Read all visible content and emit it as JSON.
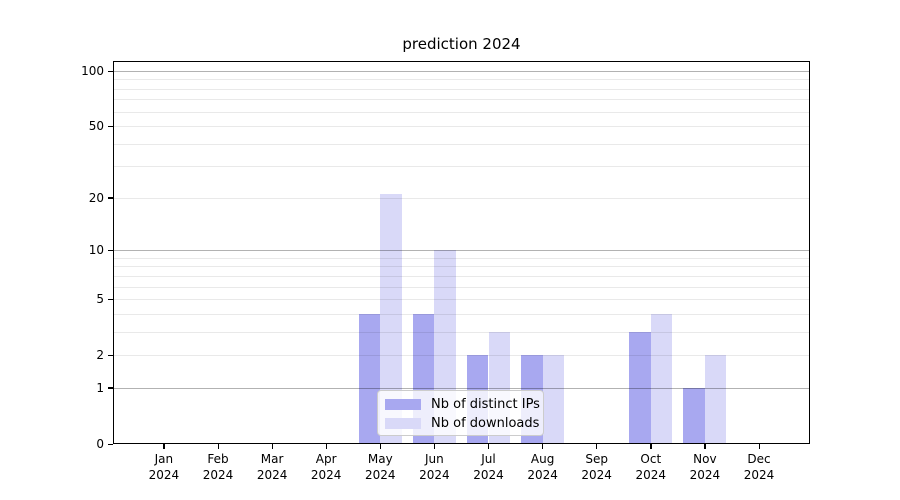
{
  "chart_data": {
    "type": "bar",
    "title": "prediction 2024",
    "categories": [
      {
        "month": "Jan",
        "year": "2024"
      },
      {
        "month": "Feb",
        "year": "2024"
      },
      {
        "month": "Mar",
        "year": "2024"
      },
      {
        "month": "Apr",
        "year": "2024"
      },
      {
        "month": "May",
        "year": "2024"
      },
      {
        "month": "Jun",
        "year": "2024"
      },
      {
        "month": "Jul",
        "year": "2024"
      },
      {
        "month": "Aug",
        "year": "2024"
      },
      {
        "month": "Sep",
        "year": "2024"
      },
      {
        "month": "Oct",
        "year": "2024"
      },
      {
        "month": "Nov",
        "year": "2024"
      },
      {
        "month": "Dec",
        "year": "2024"
      }
    ],
    "series": [
      {
        "name": "Nb of distinct IPs",
        "color": "#a8a8f0",
        "values": [
          0,
          0,
          0,
          0,
          4,
          4,
          2,
          2,
          0,
          3,
          1,
          0
        ]
      },
      {
        "name": "Nb of downloads",
        "color": "#d9d9f8",
        "values": [
          0,
          0,
          0,
          0,
          21,
          10,
          3,
          2,
          0,
          4,
          2,
          0
        ]
      }
    ],
    "y_axis": {
      "scale": "log1p",
      "tick_values": [
        100,
        50,
        20,
        10,
        5,
        2,
        1,
        0
      ],
      "tick_labels": [
        "100",
        "50",
        "20",
        "10",
        "5",
        "2",
        "1",
        "0"
      ],
      "major_gridlines": [
        1,
        10,
        100
      ],
      "minor_gridlines": [
        2,
        3,
        4,
        5,
        6,
        7,
        8,
        9,
        20,
        30,
        40,
        50,
        60,
        70,
        80,
        90
      ],
      "ylim": [
        0,
        113
      ]
    },
    "x_axis": {
      "label_format": "month over year"
    },
    "grid": true,
    "legend": {
      "position": "lower center inside plot"
    },
    "colors": {
      "distinct_ips_bar": "#a8a8f0",
      "downloads_bar": "#d9d9f8",
      "major_grid": "#b0b0b0",
      "minor_grid": "#e9e9e9",
      "spine": "#000000",
      "background": "#ffffff"
    }
  }
}
